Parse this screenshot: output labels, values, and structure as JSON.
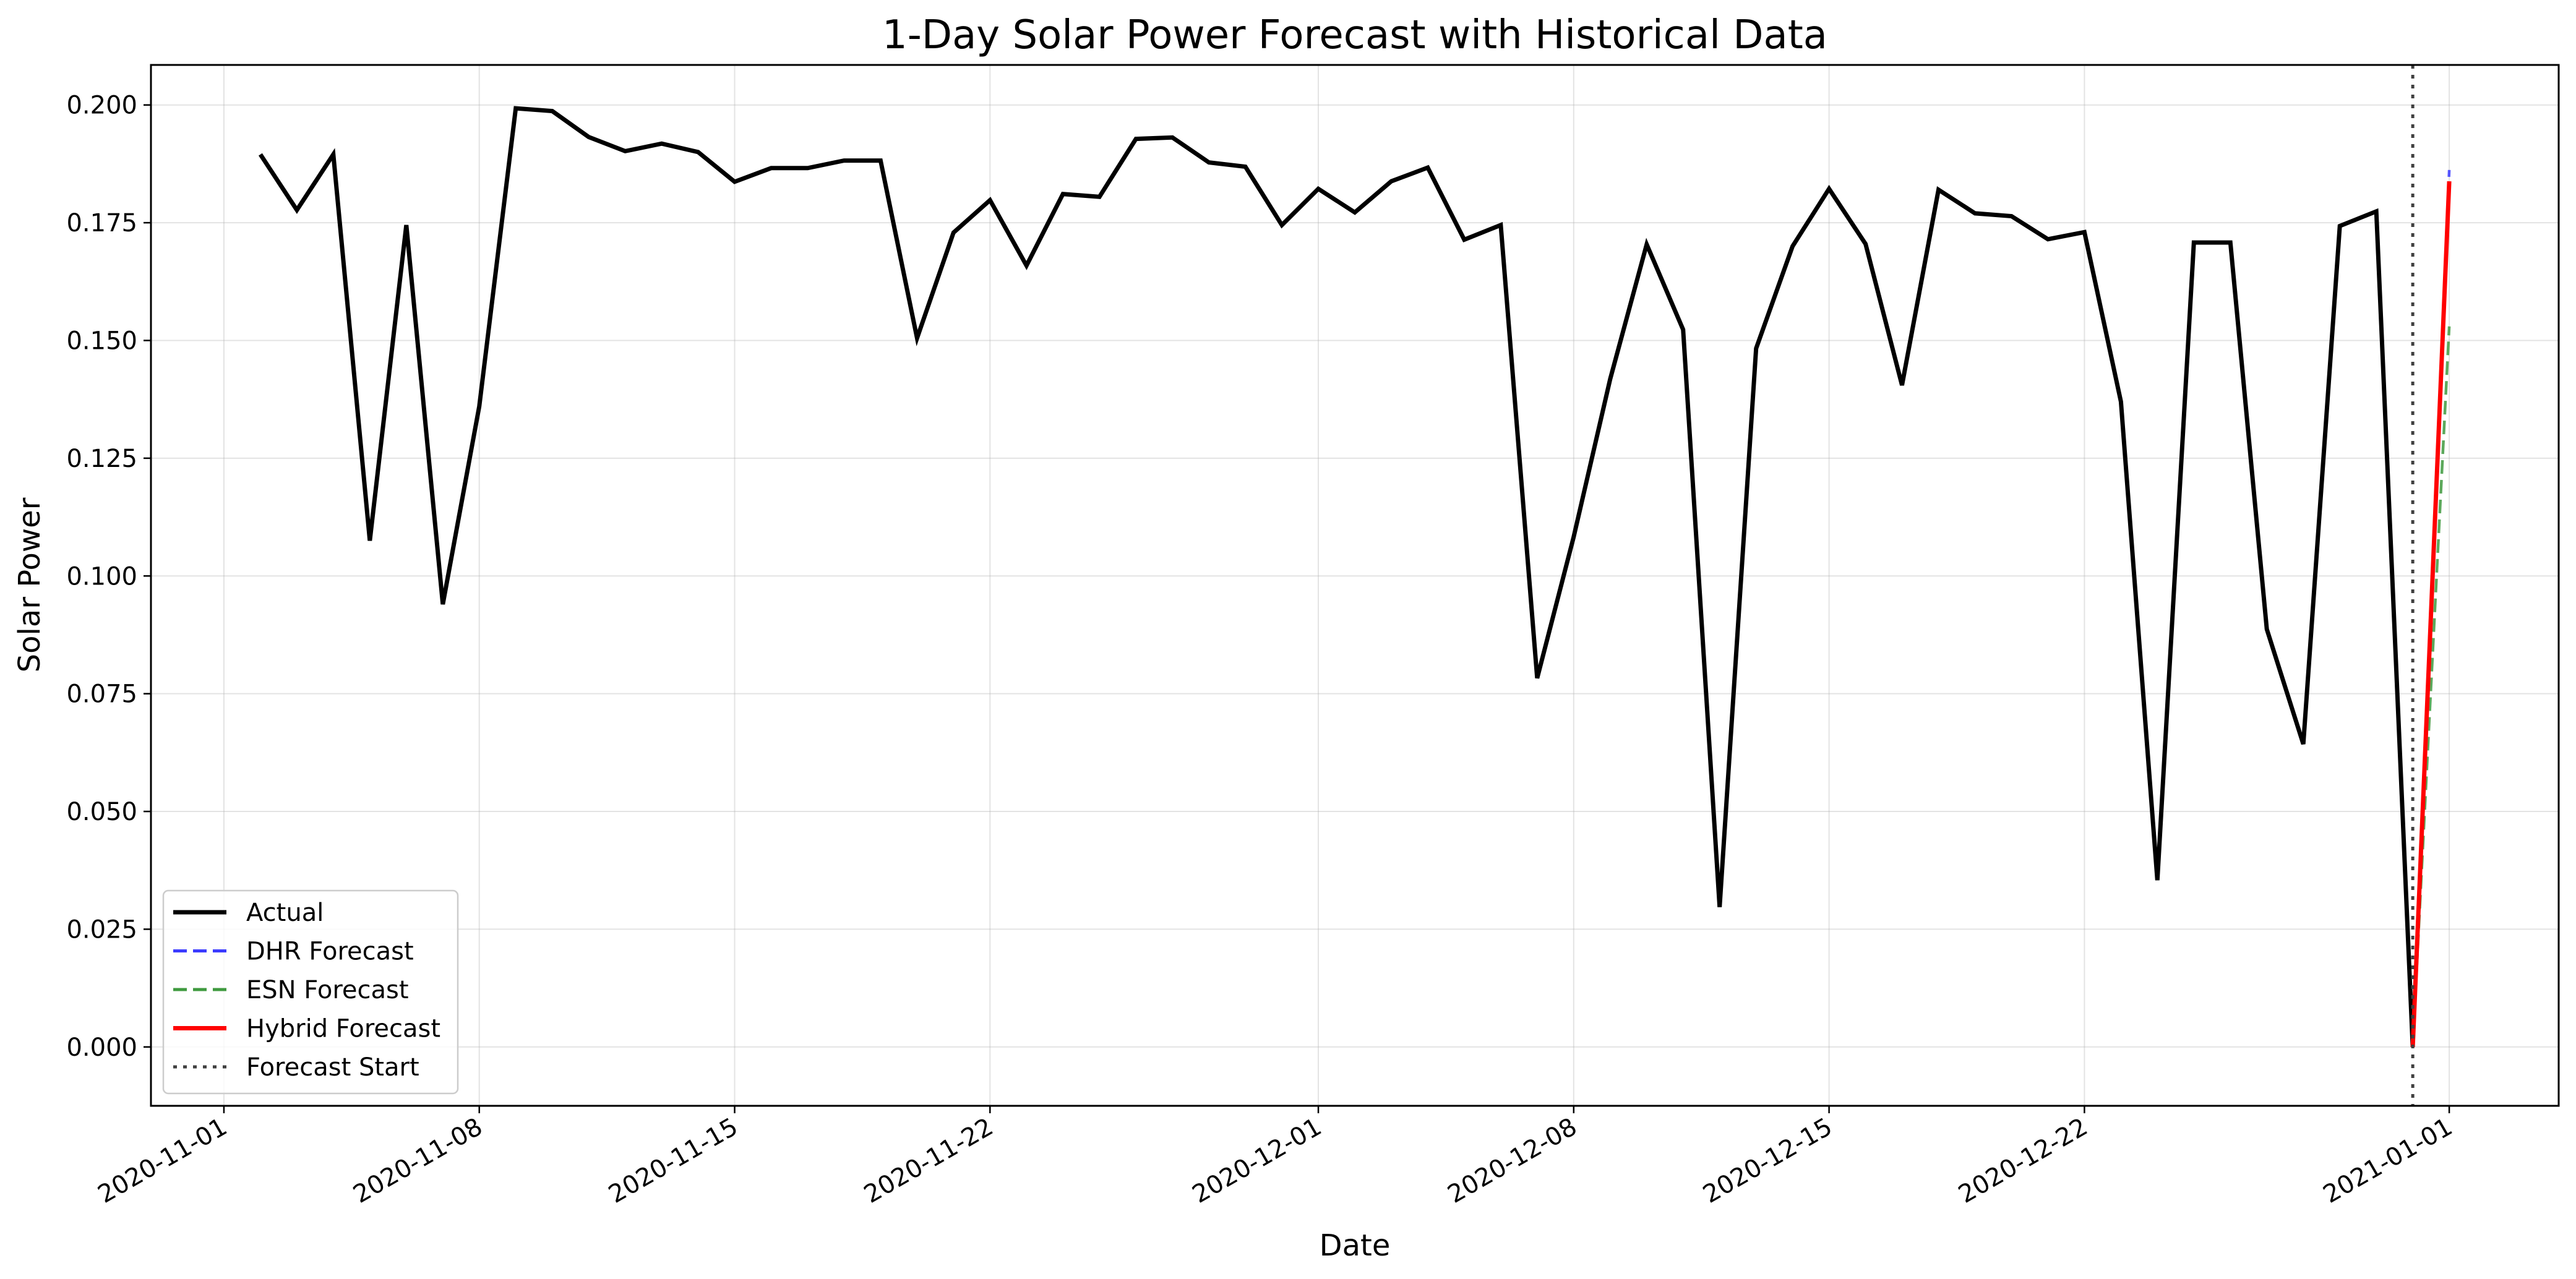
{
  "chart_data": {
    "type": "line",
    "title": "1-Day Solar Power Forecast with Historical Data",
    "xlabel": "Date",
    "ylabel": "Solar Power",
    "x_type": "date",
    "xlim": [
      "2020-10-30",
      "2021-01-04"
    ],
    "ylim": [
      -0.0125,
      0.2085
    ],
    "grid": true,
    "legend_position": "lower-left",
    "x_ticks": [
      "2020-11-01",
      "2020-11-08",
      "2020-11-15",
      "2020-11-22",
      "2020-12-01",
      "2020-12-08",
      "2020-12-15",
      "2020-12-22",
      "2021-01-01"
    ],
    "y_ticks": [
      0.0,
      0.025,
      0.05,
      0.075,
      0.1,
      0.125,
      0.15,
      0.175,
      0.2
    ],
    "y_tick_labels": [
      "0.000",
      "0.025",
      "0.050",
      "0.075",
      "0.100",
      "0.125",
      "0.150",
      "0.175",
      "0.200"
    ],
    "vline": {
      "x": "2020-12-31",
      "label": "Forecast Start",
      "color": "#404040"
    },
    "series": [
      {
        "name": "Actual",
        "color": "#000000",
        "style": "solid",
        "x": [
          "2020-11-02",
          "2020-11-03",
          "2020-11-04",
          "2020-11-05",
          "2020-11-06",
          "2020-11-07",
          "2020-11-08",
          "2020-11-09",
          "2020-11-10",
          "2020-11-11",
          "2020-11-12",
          "2020-11-13",
          "2020-11-14",
          "2020-11-15",
          "2020-11-16",
          "2020-11-17",
          "2020-11-18",
          "2020-11-19",
          "2020-11-20",
          "2020-11-21",
          "2020-11-22",
          "2020-11-23",
          "2020-11-24",
          "2020-11-25",
          "2020-11-26",
          "2020-11-27",
          "2020-11-28",
          "2020-11-29",
          "2020-11-30",
          "2020-12-01",
          "2020-12-02",
          "2020-12-03",
          "2020-12-04",
          "2020-12-05",
          "2020-12-06",
          "2020-12-07",
          "2020-12-08",
          "2020-12-09",
          "2020-12-10",
          "2020-12-11",
          "2020-12-12",
          "2020-12-13",
          "2020-12-14",
          "2020-12-15",
          "2020-12-16",
          "2020-12-17",
          "2020-12-18",
          "2020-12-19",
          "2020-12-20",
          "2020-12-21",
          "2020-12-22",
          "2020-12-23",
          "2020-12-24",
          "2020-12-25",
          "2020-12-26",
          "2020-12-27",
          "2020-12-28",
          "2020-12-29",
          "2020-12-30",
          "2020-12-31"
        ],
        "values": [
          0.1895,
          0.1777,
          0.1895,
          0.1075,
          0.1745,
          0.094,
          0.136,
          0.1993,
          0.1987,
          0.1932,
          0.1902,
          0.1918,
          0.19,
          0.1837,
          0.1866,
          0.1866,
          0.1882,
          0.1882,
          0.1505,
          0.1729,
          0.1798,
          0.1659,
          0.1811,
          0.1805,
          0.1928,
          0.1931,
          0.1878,
          0.1869,
          0.1745,
          0.1822,
          0.1772,
          0.1838,
          0.1867,
          0.1714,
          0.1745,
          0.0783,
          0.1083,
          0.1418,
          0.1704,
          0.1523,
          0.0297,
          0.1483,
          0.17,
          0.1822,
          0.1705,
          0.1405,
          0.182,
          0.177,
          0.1764,
          0.1715,
          0.173,
          0.137,
          0.0354,
          0.1708,
          0.1708,
          0.0887,
          0.0643,
          0.1743,
          0.1774,
          0.0
        ]
      },
      {
        "name": "DHR Forecast",
        "color": "#3b3bff",
        "style": "dashed",
        "x": [
          "2020-12-31",
          "2021-01-01"
        ],
        "values": [
          0.0,
          0.1862
        ]
      },
      {
        "name": "ESN Forecast",
        "color": "#3f9a3f",
        "style": "dashed",
        "x": [
          "2020-12-31",
          "2021-01-01"
        ],
        "values": [
          0.0,
          0.153
        ]
      },
      {
        "name": "Hybrid Forecast",
        "color": "#ff0000",
        "style": "solid",
        "x": [
          "2020-12-31",
          "2021-01-01"
        ],
        "values": [
          0.0,
          0.1838
        ]
      }
    ],
    "legend": [
      {
        "label": "Actual",
        "color": "#000000",
        "style": "solid"
      },
      {
        "label": "DHR Forecast",
        "color": "#3b3bff",
        "style": "dashed"
      },
      {
        "label": "ESN Forecast",
        "color": "#3f9a3f",
        "style": "dashed"
      },
      {
        "label": "Hybrid Forecast",
        "color": "#ff0000",
        "style": "solid"
      },
      {
        "label": "Forecast Start",
        "color": "#404040",
        "style": "dotted"
      }
    ]
  }
}
